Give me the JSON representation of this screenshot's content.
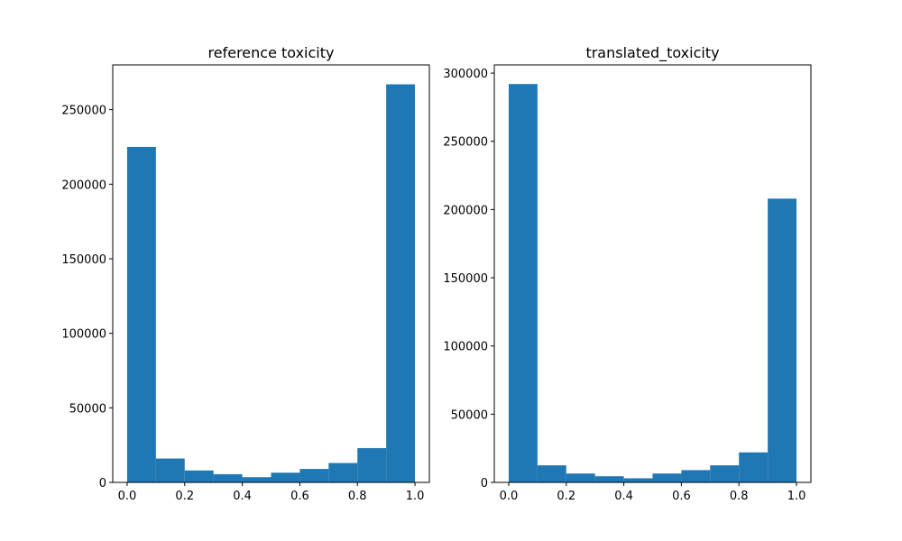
{
  "chart_data": [
    {
      "type": "bar",
      "title": "reference toxicity",
      "xlabel": "",
      "ylabel": "",
      "bin_edges": [
        0.0,
        0.1,
        0.2,
        0.3,
        0.4,
        0.5,
        0.6,
        0.7,
        0.8,
        0.9,
        1.0
      ],
      "values": [
        225000,
        16000,
        8000,
        5500,
        3500,
        6500,
        9000,
        13000,
        23000,
        267000
      ],
      "xlim": [
        -0.05,
        1.05
      ],
      "ylim": [
        0,
        280000
      ],
      "xticks": [
        0.0,
        0.2,
        0.4,
        0.6,
        0.8,
        1.0
      ],
      "xtick_labels": [
        "0.0",
        "0.2",
        "0.4",
        "0.6",
        "0.8",
        "1.0"
      ],
      "yticks": [
        0,
        50000,
        100000,
        150000,
        200000,
        250000
      ],
      "ytick_labels": [
        "0",
        "50000",
        "100000",
        "150000",
        "200000",
        "250000"
      ],
      "color": "#1f77b4",
      "grid": false
    },
    {
      "type": "bar",
      "title": "translated_toxicity",
      "xlabel": "",
      "ylabel": "",
      "bin_edges": [
        0.0,
        0.1,
        0.2,
        0.3,
        0.4,
        0.5,
        0.6,
        0.7,
        0.8,
        0.9,
        1.0
      ],
      "values": [
        292000,
        12500,
        6500,
        4500,
        3000,
        6500,
        9000,
        12500,
        22000,
        208000
      ],
      "xlim": [
        -0.05,
        1.05
      ],
      "ylim": [
        0,
        306000
      ],
      "xticks": [
        0.0,
        0.2,
        0.4,
        0.6,
        0.8,
        1.0
      ],
      "xtick_labels": [
        "0.0",
        "0.2",
        "0.4",
        "0.6",
        "0.8",
        "1.0"
      ],
      "yticks": [
        0,
        50000,
        100000,
        150000,
        200000,
        250000,
        300000
      ],
      "ytick_labels": [
        "0",
        "50000",
        "100000",
        "150000",
        "200000",
        "250000",
        "300000"
      ],
      "color": "#1f77b4",
      "grid": false
    }
  ]
}
